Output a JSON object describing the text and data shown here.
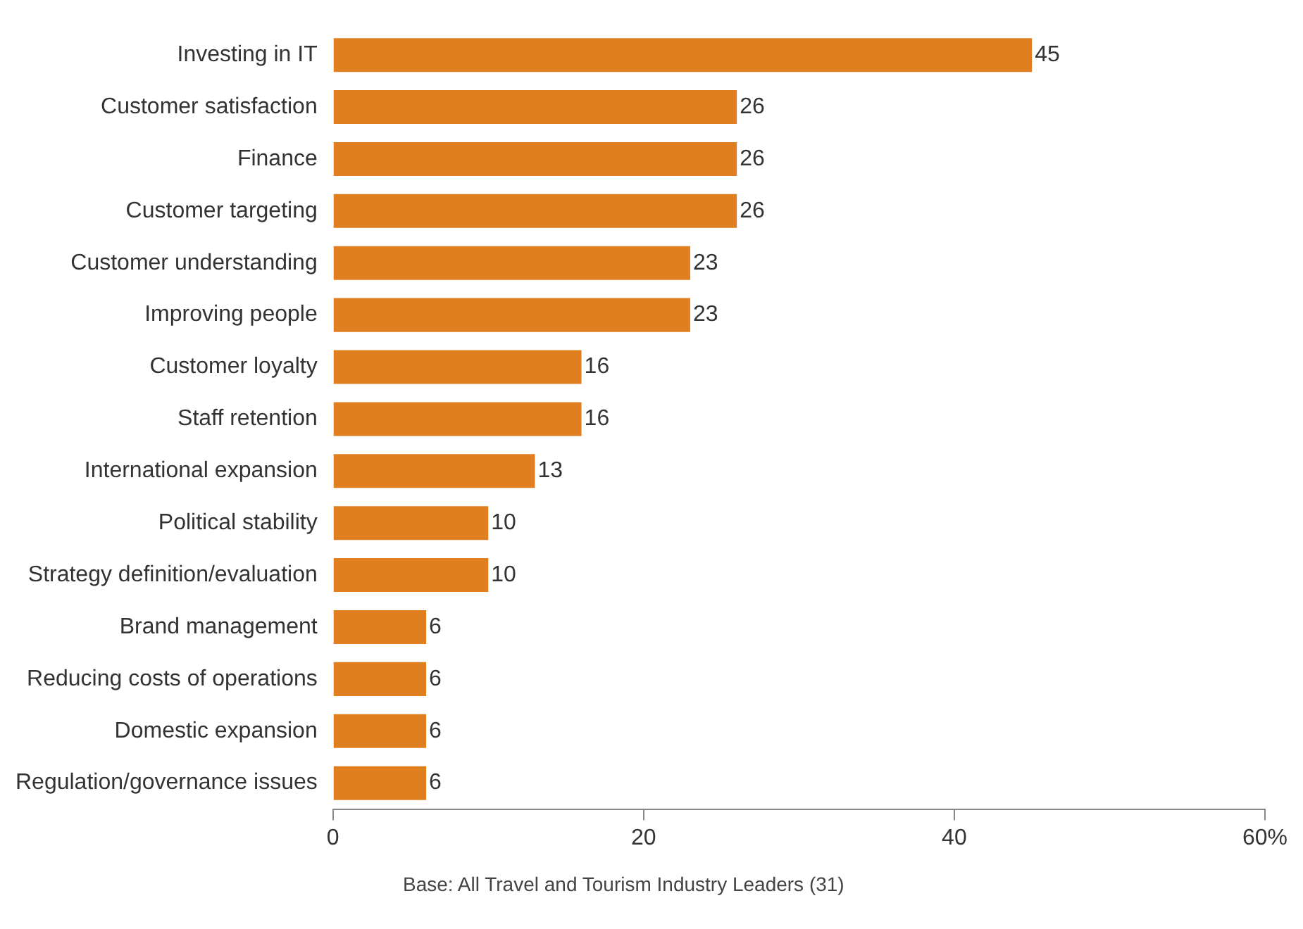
{
  "chart_data": {
    "type": "bar",
    "orientation": "horizontal",
    "categories": [
      "Investing in IT",
      "Customer satisfaction",
      "Finance",
      "Customer targeting",
      "Customer understanding",
      "Improving people",
      "Customer loyalty",
      "Staff retention",
      "International expansion",
      "Political stability",
      "Strategy definition/evaluation",
      "Brand management",
      "Reducing costs of operations",
      "Domestic expansion",
      "Regulation/governance issues"
    ],
    "values": [
      45,
      26,
      26,
      26,
      23,
      23,
      16,
      16,
      13,
      10,
      10,
      6,
      6,
      6,
      6
    ],
    "color": "#e07f1f",
    "xlim": [
      0,
      60
    ],
    "xticks": [
      0,
      20,
      40,
      {
        "value": 60,
        "label": "60%"
      }
    ],
    "data_labels": true,
    "grid": false,
    "legend": false,
    "annotations": [
      "Base: All Travel and Tourism Industry Leaders (31)"
    ]
  }
}
